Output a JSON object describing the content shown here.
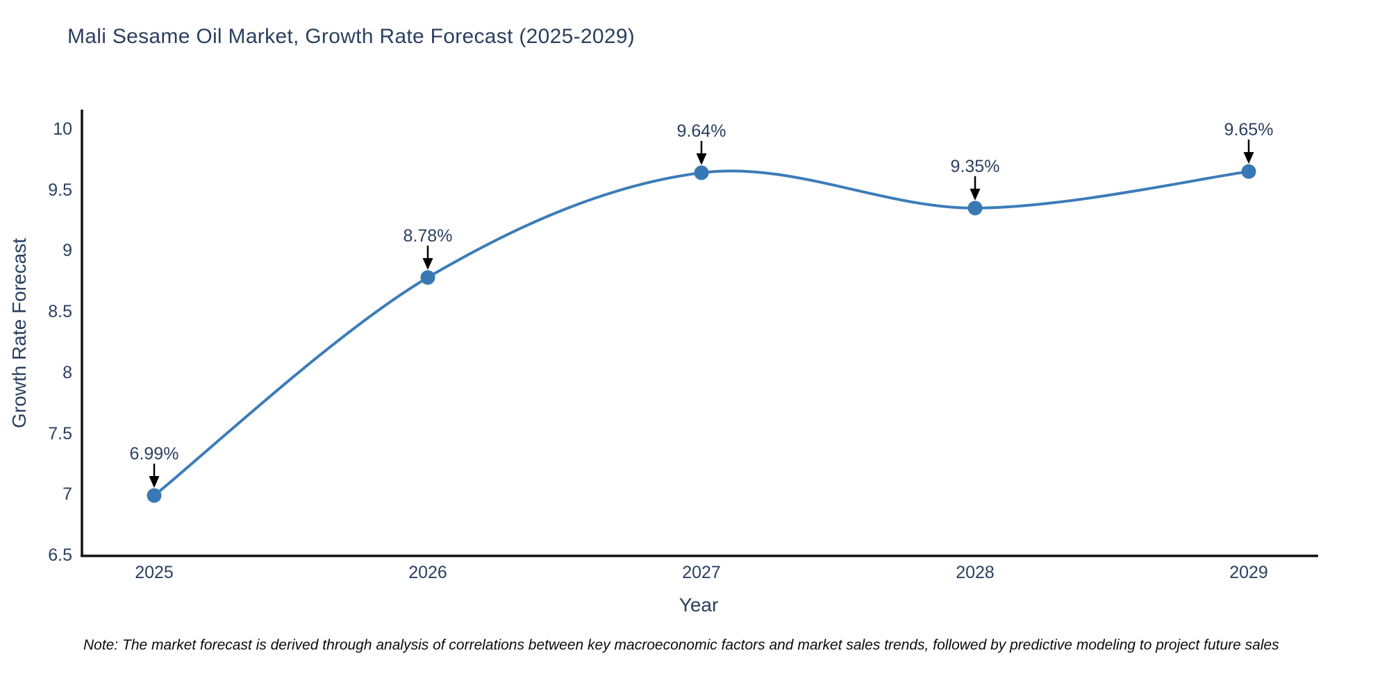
{
  "page": {
    "background": "#ffffff"
  },
  "chart_data": {
    "type": "line",
    "title": "Mali Sesame Oil Market, Growth Rate Forecast (2025-2029)",
    "xlabel": "Year",
    "ylabel": "Growth Rate Forecast",
    "categories": [
      "2025",
      "2026",
      "2027",
      "2028",
      "2029"
    ],
    "series": [
      {
        "name": "Growth Rate Forecast",
        "values": [
          6.99,
          8.78,
          9.64,
          9.35,
          9.65
        ]
      }
    ],
    "point_labels": [
      "6.99%",
      "8.78%",
      "9.64%",
      "9.35%",
      "9.65%"
    ],
    "ylim": [
      6.5,
      10.15
    ],
    "yticks": [
      6.5,
      7,
      7.5,
      8,
      8.5,
      9,
      9.5,
      10
    ],
    "line_shape": "spline",
    "grid": false,
    "legend_position": "none",
    "colors": {
      "line": "#3c7cb8",
      "marker": "#3878b4",
      "arrow": "#000000",
      "text": "#2a3f5f",
      "axis": "#111111"
    }
  },
  "note": "Note: The market forecast is derived through analysis of correlations between key macroeconomic factors and market sales trends, followed by predictive modeling to project future sales"
}
